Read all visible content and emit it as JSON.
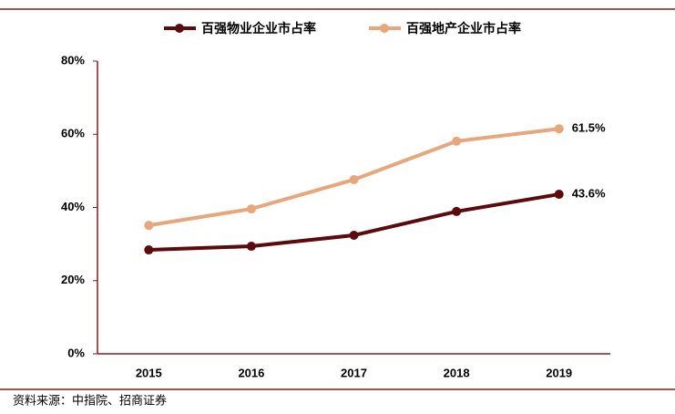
{
  "chart_data": {
    "type": "line",
    "categories": [
      "2015",
      "2016",
      "2017",
      "2018",
      "2019"
    ],
    "series": [
      {
        "name": "百强物业企业市占率",
        "color": "#5c0a0d",
        "values": [
          28.4,
          29.4,
          32.4,
          38.9,
          43.6
        ],
        "value_labels": [
          null,
          null,
          null,
          null,
          "43.6%"
        ]
      },
      {
        "name": "百强地产企业市占率",
        "color": "#e8a67c",
        "values": [
          35.1,
          39.6,
          47.6,
          58.1,
          61.5
        ],
        "value_labels": [
          null,
          null,
          null,
          null,
          "61.5%"
        ]
      }
    ],
    "ylim": [
      0,
      80
    ],
    "yticks": [
      {
        "value": 0,
        "label": "0%"
      },
      {
        "value": 20,
        "label": "20%"
      },
      {
        "value": 40,
        "label": "40%"
      },
      {
        "value": 60,
        "label": "60%"
      },
      {
        "value": 80,
        "label": "80%"
      }
    ],
    "source": "资料来源：中指院、招商证券"
  }
}
